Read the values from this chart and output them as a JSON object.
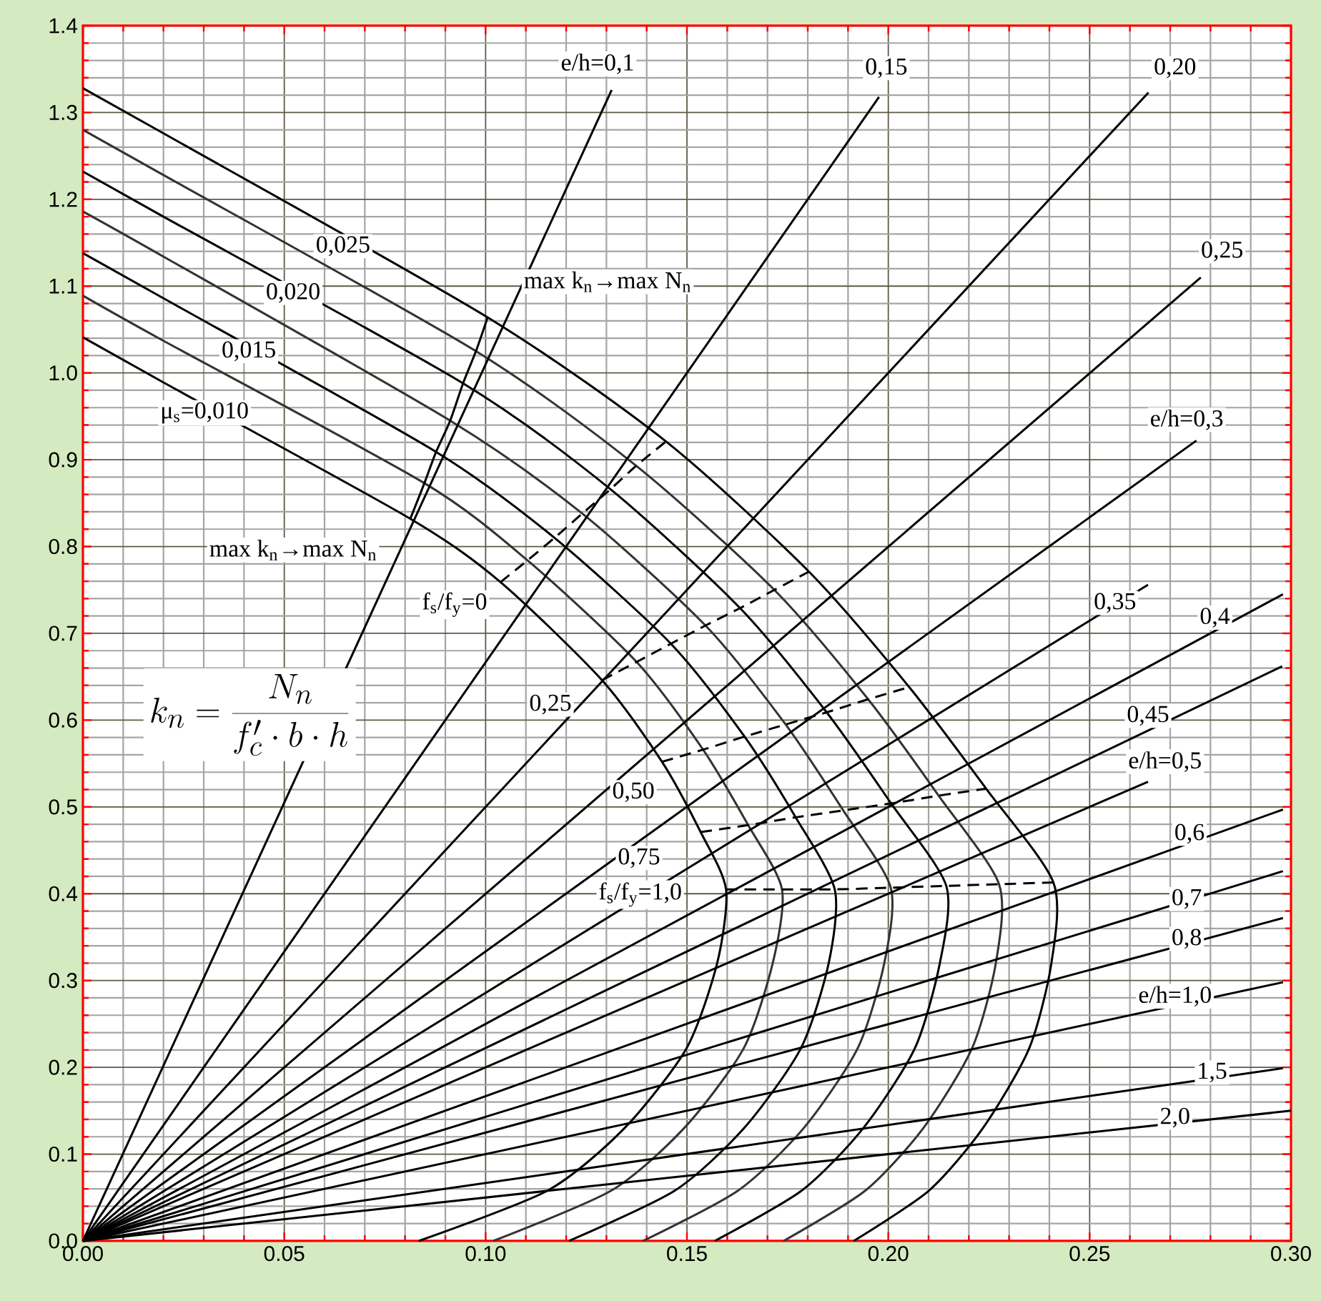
{
  "chart_data": {
    "type": "line",
    "marker": "none",
    "grid": true,
    "xlim": [
      0,
      0.3
    ],
    "ylim": [
      0,
      1.4
    ],
    "xticks": [
      {
        "value": 0,
        "label": "0.00"
      },
      0.05,
      {
        "value": 0.1,
        "label": "0.10"
      },
      0.15,
      {
        "value": 0.2,
        "label": "0.20"
      },
      0.25,
      {
        "value": 0.3,
        "label": "0.30"
      }
    ],
    "yticks": [
      {
        "value": 0,
        "label": "0.0"
      },
      0.1,
      0.2,
      0.3,
      0.4,
      0.5,
      0.6,
      0.7,
      0.8,
      0.9,
      {
        "value": 1.0,
        "label": "1.0"
      },
      1.1,
      1.2,
      1.3,
      1.4
    ],
    "series": [
      {
        "color": "#000000",
        "x": [
          0,
          0.02,
          0.0813,
          0.1037,
          0.1289,
          0.1438,
          0.1534,
          0.1597,
          0.1575,
          0.1499,
          0.1345,
          0.1154,
          0.0834
        ],
        "values": [
          1.041,
          0.989,
          0.832,
          0.759,
          0.646,
          0.552,
          0.471,
          0.405,
          0.32,
          0.222,
          0.13,
          0.058,
          0
        ]
      },
      {
        "color": "#333333",
        "x": [
          0,
          0.02,
          0.0848,
          0.1104,
          0.1375,
          0.154,
          0.1652,
          0.1736,
          0.1713,
          0.1641,
          0.1493,
          0.1312,
          0.1019
        ],
        "values": [
          1.089,
          1.037,
          0.873,
          0.784,
          0.667,
          0.566,
          0.479,
          0.405,
          0.32,
          0.222,
          0.13,
          0.058,
          0
        ]
      },
      {
        "color": "#000000",
        "x": [
          0,
          0.02,
          0.0877,
          0.1171,
          0.146,
          0.1643,
          0.177,
          0.1867,
          0.1852,
          0.1783,
          0.1642,
          0.147,
          0.1207
        ],
        "values": [
          1.138,
          1.086,
          0.909,
          0.81,
          0.688,
          0.581,
          0.488,
          0.405,
          0.32,
          0.222,
          0.13,
          0.058,
          0
        ]
      },
      {
        "color": "#333333",
        "x": [
          0,
          0.02,
          0.0912,
          0.124,
          0.1546,
          0.1745,
          0.1888,
          0.2006,
          0.199,
          0.1924,
          0.179,
          0.1627,
          0.1391
        ],
        "values": [
          1.186,
          1.134,
          0.945,
          0.838,
          0.709,
          0.595,
          0.496,
          0.407,
          0.32,
          0.222,
          0.13,
          0.058,
          0
        ]
      },
      {
        "color": "#000000",
        "x": [
          0,
          0.02,
          0.0944,
          0.131,
          0.1632,
          0.1847,
          0.2007,
          0.2144,
          0.2128,
          0.2066,
          0.1938,
          0.1785,
          0.1569
        ],
        "values": [
          1.232,
          1.18,
          0.988,
          0.866,
          0.729,
          0.609,
          0.504,
          0.409,
          0.32,
          0.222,
          0.13,
          0.058,
          0
        ]
      },
      {
        "color": "#333333",
        "x": [
          0,
          0.02,
          0.0976,
          0.1374,
          0.1717,
          0.195,
          0.2125,
          0.2275,
          0.2267,
          0.2208,
          0.2087,
          0.1943,
          0.174
        ],
        "values": [
          1.28,
          1.228,
          1.025,
          0.893,
          0.75,
          0.624,
          0.513,
          0.411,
          0.32,
          0.222,
          0.13,
          0.058,
          0
        ]
      },
      {
        "color": "#000000",
        "x": [
          0,
          0.02,
          0.1005,
          0.1448,
          0.1803,
          0.2052,
          0.2243,
          0.241,
          0.2405,
          0.235,
          0.2235,
          0.2101,
          0.1914
        ],
        "values": [
          1.328,
          1.276,
          1.064,
          0.921,
          0.771,
          0.638,
          0.521,
          0.413,
          0.32,
          0.222,
          0.13,
          0.058,
          0
        ]
      },
      {
        "color": "#000000",
        "x": [
          0.0813,
          0.0848,
          0.0877,
          0.0912,
          0.0944,
          0.0976,
          0.1005
        ],
        "values": [
          0.832,
          0.873,
          0.909,
          0.945,
          0.988,
          1.025,
          1.064
        ]
      },
      {
        "color": "#000000",
        "line_style": "dashed",
        "x": [
          0.1037,
          0.1104,
          0.1171,
          0.124,
          0.131,
          0.1374,
          0.1448
        ],
        "values": [
          0.759,
          0.784,
          0.81,
          0.838,
          0.866,
          0.893,
          0.921
        ]
      },
      {
        "color": "#000000",
        "line_style": "dashed",
        "x": [
          0.1289,
          0.1375,
          0.146,
          0.1546,
          0.1632,
          0.1717,
          0.1803
        ],
        "values": [
          0.646,
          0.667,
          0.688,
          0.709,
          0.729,
          0.75,
          0.771
        ]
      },
      {
        "color": "#000000",
        "line_style": "dashed",
        "x": [
          0.1438,
          0.154,
          0.1643,
          0.1745,
          0.1847,
          0.195,
          0.2052
        ],
        "values": [
          0.552,
          0.566,
          0.581,
          0.595,
          0.609,
          0.624,
          0.638
        ]
      },
      {
        "color": "#000000",
        "line_style": "dashed",
        "x": [
          0.1534,
          0.1652,
          0.177,
          0.1888,
          0.2007,
          0.2125,
          0.2243
        ],
        "values": [
          0.471,
          0.479,
          0.488,
          0.496,
          0.504,
          0.513,
          0.521
        ]
      },
      {
        "color": "#000000",
        "line_style": "dashed",
        "x": [
          0.1597,
          0.1736,
          0.1867,
          0.2006,
          0.2144,
          0.2275,
          0.241
        ],
        "values": [
          0.405,
          0.405,
          0.405,
          0.407,
          0.409,
          0.411,
          0.413
        ]
      },
      {
        "color": "#000000",
        "x": [
          0,
          0.1313
        ],
        "values": [
          0,
          1.326
        ]
      },
      {
        "color": "#000000",
        "x": [
          0,
          0.1977
        ],
        "values": [
          0,
          1.318
        ]
      },
      {
        "color": "#000000",
        "x": [
          0,
          0.2646
        ],
        "values": [
          0,
          1.323
        ]
      },
      {
        "color": "#000000",
        "x": [
          0,
          0.2776
        ],
        "values": [
          0,
          1.11
        ]
      },
      {
        "color": "#000000",
        "x": [
          0,
          0.2765
        ],
        "values": [
          0,
          0.922
        ]
      },
      {
        "color": "#000000",
        "x": [
          0,
          0.2645
        ],
        "values": [
          0,
          0.756
        ]
      },
      {
        "color": "#000000",
        "x": [
          0,
          0.298
        ],
        "values": [
          0,
          0.745
        ]
      },
      {
        "color": "#000000",
        "x": [
          0,
          0.2978
        ],
        "values": [
          0,
          0.662
        ]
      },
      {
        "color": "#000000",
        "x": [
          0,
          0.2645
        ],
        "values": [
          0,
          0.529
        ]
      },
      {
        "color": "#000000",
        "x": [
          0,
          0.298
        ],
        "values": [
          0,
          0.497
        ]
      },
      {
        "color": "#000000",
        "x": [
          0,
          0.298
        ],
        "values": [
          0,
          0.426
        ]
      },
      {
        "color": "#000000",
        "x": [
          0,
          0.298
        ],
        "values": [
          0,
          0.372
        ]
      },
      {
        "color": "#000000",
        "x": [
          0,
          0.298
        ],
        "values": [
          0,
          0.298
        ]
      },
      {
        "color": "#000000",
        "x": [
          0,
          0.298
        ],
        "values": [
          0,
          0.199
        ]
      },
      {
        "color": "#000000",
        "x": [
          0,
          0.3
        ],
        "values": [
          0,
          0.15
        ]
      }
    ],
    "annotations": [
      "k_{n}=\\frac{N_{n}}{f'_{c}\\cdot b\\cdot h}",
      {
        "text": "μ$_{s}$=0,010",
        "x": 0.0302,
        "y": 0.954
      },
      {
        "text": "0,015",
        "x": 0.0412,
        "y": 1.025
      },
      {
        "text": "0,020",
        "x": 0.0522,
        "y": 1.092
      },
      {
        "text": "0,025",
        "x": 0.0646,
        "y": 1.146
      },
      "max k$_{n}$→max N$_{n}$",
      "max k$_{n}$→max N$_{n}$",
      "f$_{s}$/f$_{y}$=0",
      {
        "text": "0,25",
        "x": 0.1161,
        "y": 0.618
      },
      {
        "text": "0,50",
        "x": 0.1367,
        "y": 0.517
      },
      {
        "text": "0,75",
        "x": 0.1381,
        "y": 0.441
      },
      {
        "text": "f$_{s}$/f$_{y}$=1,0",
        "x": 0.1384,
        "y": 0.399
      },
      "e/h=0,1",
      {
        "text": "0,15",
        "x": 0.1995,
        "y": 1.351
      },
      {
        "text": "0,20",
        "x": 0.2712,
        "y": 1.351
      },
      {
        "text": "0,25",
        "x": 0.2829,
        "y": 1.14
      },
      "e/h=0,3",
      {
        "text": "0,35",
        "x": 0.2563,
        "y": 0.735
      },
      {
        "text": "0,4",
        "x": 0.2811,
        "y": 0.718
      },
      {
        "text": "0,45",
        "x": 0.2645,
        "y": 0.605
      },
      "e/h=0,5",
      {
        "text": "0,6",
        "x": 0.2748,
        "y": 0.469
      },
      {
        "text": "0,7",
        "x": 0.2741,
        "y": 0.394
      },
      {
        "text": "0,8",
        "x": 0.2741,
        "y": 0.348
      },
      "e/h=1,0",
      {
        "text": "1,5",
        "x": 0.2804,
        "y": 0.194
      },
      {
        "text": "2,0",
        "x": 0.2712,
        "y": 0.142
      }
    ]
  }
}
